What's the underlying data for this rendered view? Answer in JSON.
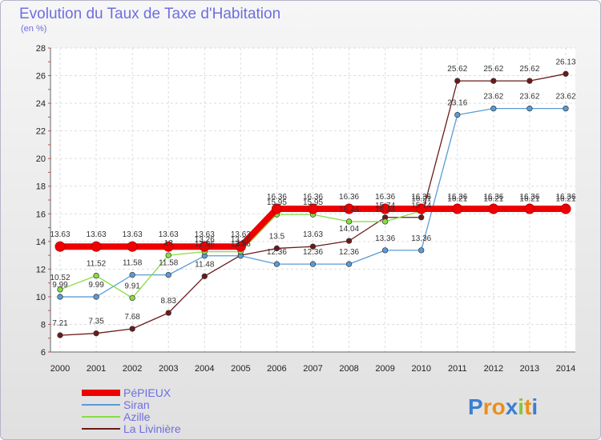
{
  "chart_data": {
    "type": "line",
    "title": "Evolution du Taux de Taxe d'Habitation",
    "subtitle": "(en %)",
    "x": [
      "2000",
      "2001",
      "2002",
      "2003",
      "2004",
      "2005",
      "2006",
      "2007",
      "2008",
      "2009",
      "2010",
      "2011",
      "2012",
      "2013",
      "2014"
    ],
    "yticks": [
      6,
      8,
      10,
      12,
      14,
      16,
      18,
      20,
      22,
      24,
      26,
      28
    ],
    "ylim": [
      6,
      28
    ],
    "grid": true,
    "legend_position": "bottom-left",
    "series": [
      {
        "name": "PéPIEUX",
        "color": "#ee0000",
        "values": [
          13.63,
          13.63,
          13.63,
          13.63,
          13.63,
          13.63,
          16.36,
          16.36,
          16.36,
          16.36,
          16.36,
          16.36,
          16.36,
          16.36,
          16.36
        ],
        "labels": [
          "13.63",
          "13.63",
          "13.63",
          "13.63",
          "13.63",
          "13.63",
          "16.36",
          "16.36",
          "16.36",
          "16.36",
          "16.36",
          "16.36",
          "16.36",
          "16.36",
          "16.36"
        ]
      },
      {
        "name": "Siran",
        "color": "#5b9bd5",
        "values": [
          9.99,
          9.99,
          11.58,
          11.58,
          12.96,
          12.96,
          12.36,
          12.36,
          12.36,
          13.36,
          13.36,
          23.16,
          23.62,
          23.62,
          23.62
        ],
        "labels": [
          "9.99",
          "9.99",
          "11.58",
          "11.58",
          "12.96",
          "12.96",
          "12.36",
          "12.36",
          "12.36",
          "13.36",
          "13.36",
          "23.16",
          "23.62",
          "23.62",
          "23.62"
        ]
      },
      {
        "name": "Azille",
        "color": "#88dd44",
        "values": [
          10.52,
          11.52,
          9.91,
          13.0,
          13.26,
          13.26,
          15.95,
          15.95,
          15.44,
          15.44,
          16.21,
          16.21,
          16.21,
          16.21,
          16.21
        ],
        "labels": [
          "10.52",
          "11.52",
          "9.91",
          "13",
          "13.26",
          "13.26",
          "15.95",
          "15.95",
          "15.44",
          "15.44",
          "16.21",
          "16.21",
          "16.21",
          "16.21",
          "16.21"
        ]
      },
      {
        "name": "La Livinière",
        "color": "#6b1a1a",
        "values": [
          7.21,
          7.35,
          7.68,
          8.83,
          11.48,
          13.0,
          13.5,
          13.63,
          14.04,
          15.74,
          15.74,
          25.62,
          25.62,
          25.62,
          26.13
        ],
        "labels": [
          "7.21",
          "7.35",
          "7.68",
          "8.83",
          "11.48",
          "13",
          "13.5",
          "13.63",
          "14.04",
          "15.74",
          "15.74",
          "25.62",
          "25.62",
          "25.62",
          "26.13"
        ]
      }
    ]
  },
  "logo": {
    "text": "Proxiti",
    "letter_colors": [
      "#3b7fd1",
      "#e8901c",
      "#e8901c",
      "#3b7fd1",
      "#88c43c",
      "#e8901c",
      "#3b7fd1"
    ]
  }
}
